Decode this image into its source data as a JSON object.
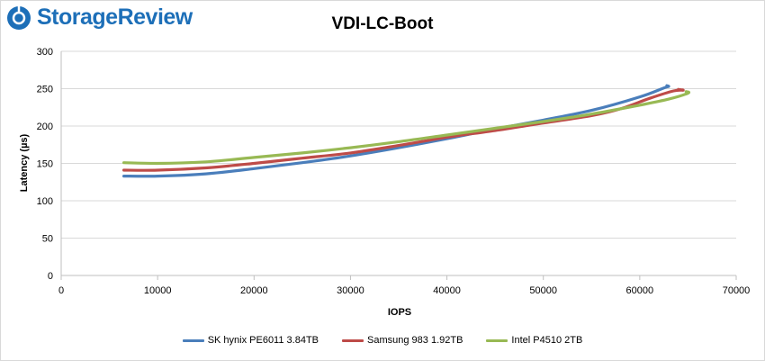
{
  "brand": {
    "logo_text": "StorageReview"
  },
  "chart_data": {
    "type": "line",
    "title": "VDI-LC-Boot",
    "xlabel": "IOPS",
    "ylabel": "Latency (µs)",
    "xlim": [
      0,
      70000
    ],
    "ylim": [
      0,
      300
    ],
    "xticks": [
      0,
      10000,
      20000,
      30000,
      40000,
      50000,
      60000,
      70000
    ],
    "yticks": [
      0,
      50,
      100,
      150,
      200,
      250,
      300
    ],
    "grid": "horizontal",
    "legend_position": "bottom",
    "series": [
      {
        "name": "SK hynix PE6011 3.84TB",
        "color": "#4a7ebb",
        "x": [
          6500,
          10000,
          15000,
          20000,
          25000,
          30000,
          35000,
          40000,
          45000,
          50000,
          55000,
          60000,
          62500,
          63000,
          62800
        ],
        "y": [
          133,
          133,
          136,
          143,
          151,
          160,
          171,
          183,
          196,
          208,
          221,
          239,
          251,
          253,
          254
        ]
      },
      {
        "name": "Samsung 983 1.92TB",
        "color": "#be4b48",
        "x": [
          6500,
          10000,
          15000,
          20000,
          25000,
          30000,
          35000,
          40000,
          45000,
          50000,
          55000,
          58000,
          61000,
          63500,
          64500,
          64000
        ],
        "y": [
          141,
          141,
          144,
          150,
          157,
          164,
          174,
          185,
          194,
          204,
          214,
          223,
          237,
          247,
          248,
          249
        ]
      },
      {
        "name": "Intel P4510 2TB",
        "color": "#98b954",
        "x": [
          6500,
          10000,
          15000,
          20000,
          25000,
          30000,
          35000,
          40000,
          45000,
          50000,
          55000,
          60000,
          63000,
          65000,
          64800
        ],
        "y": [
          151,
          150,
          152,
          158,
          164,
          171,
          179,
          188,
          197,
          206,
          216,
          228,
          236,
          244,
          246
        ]
      }
    ]
  }
}
